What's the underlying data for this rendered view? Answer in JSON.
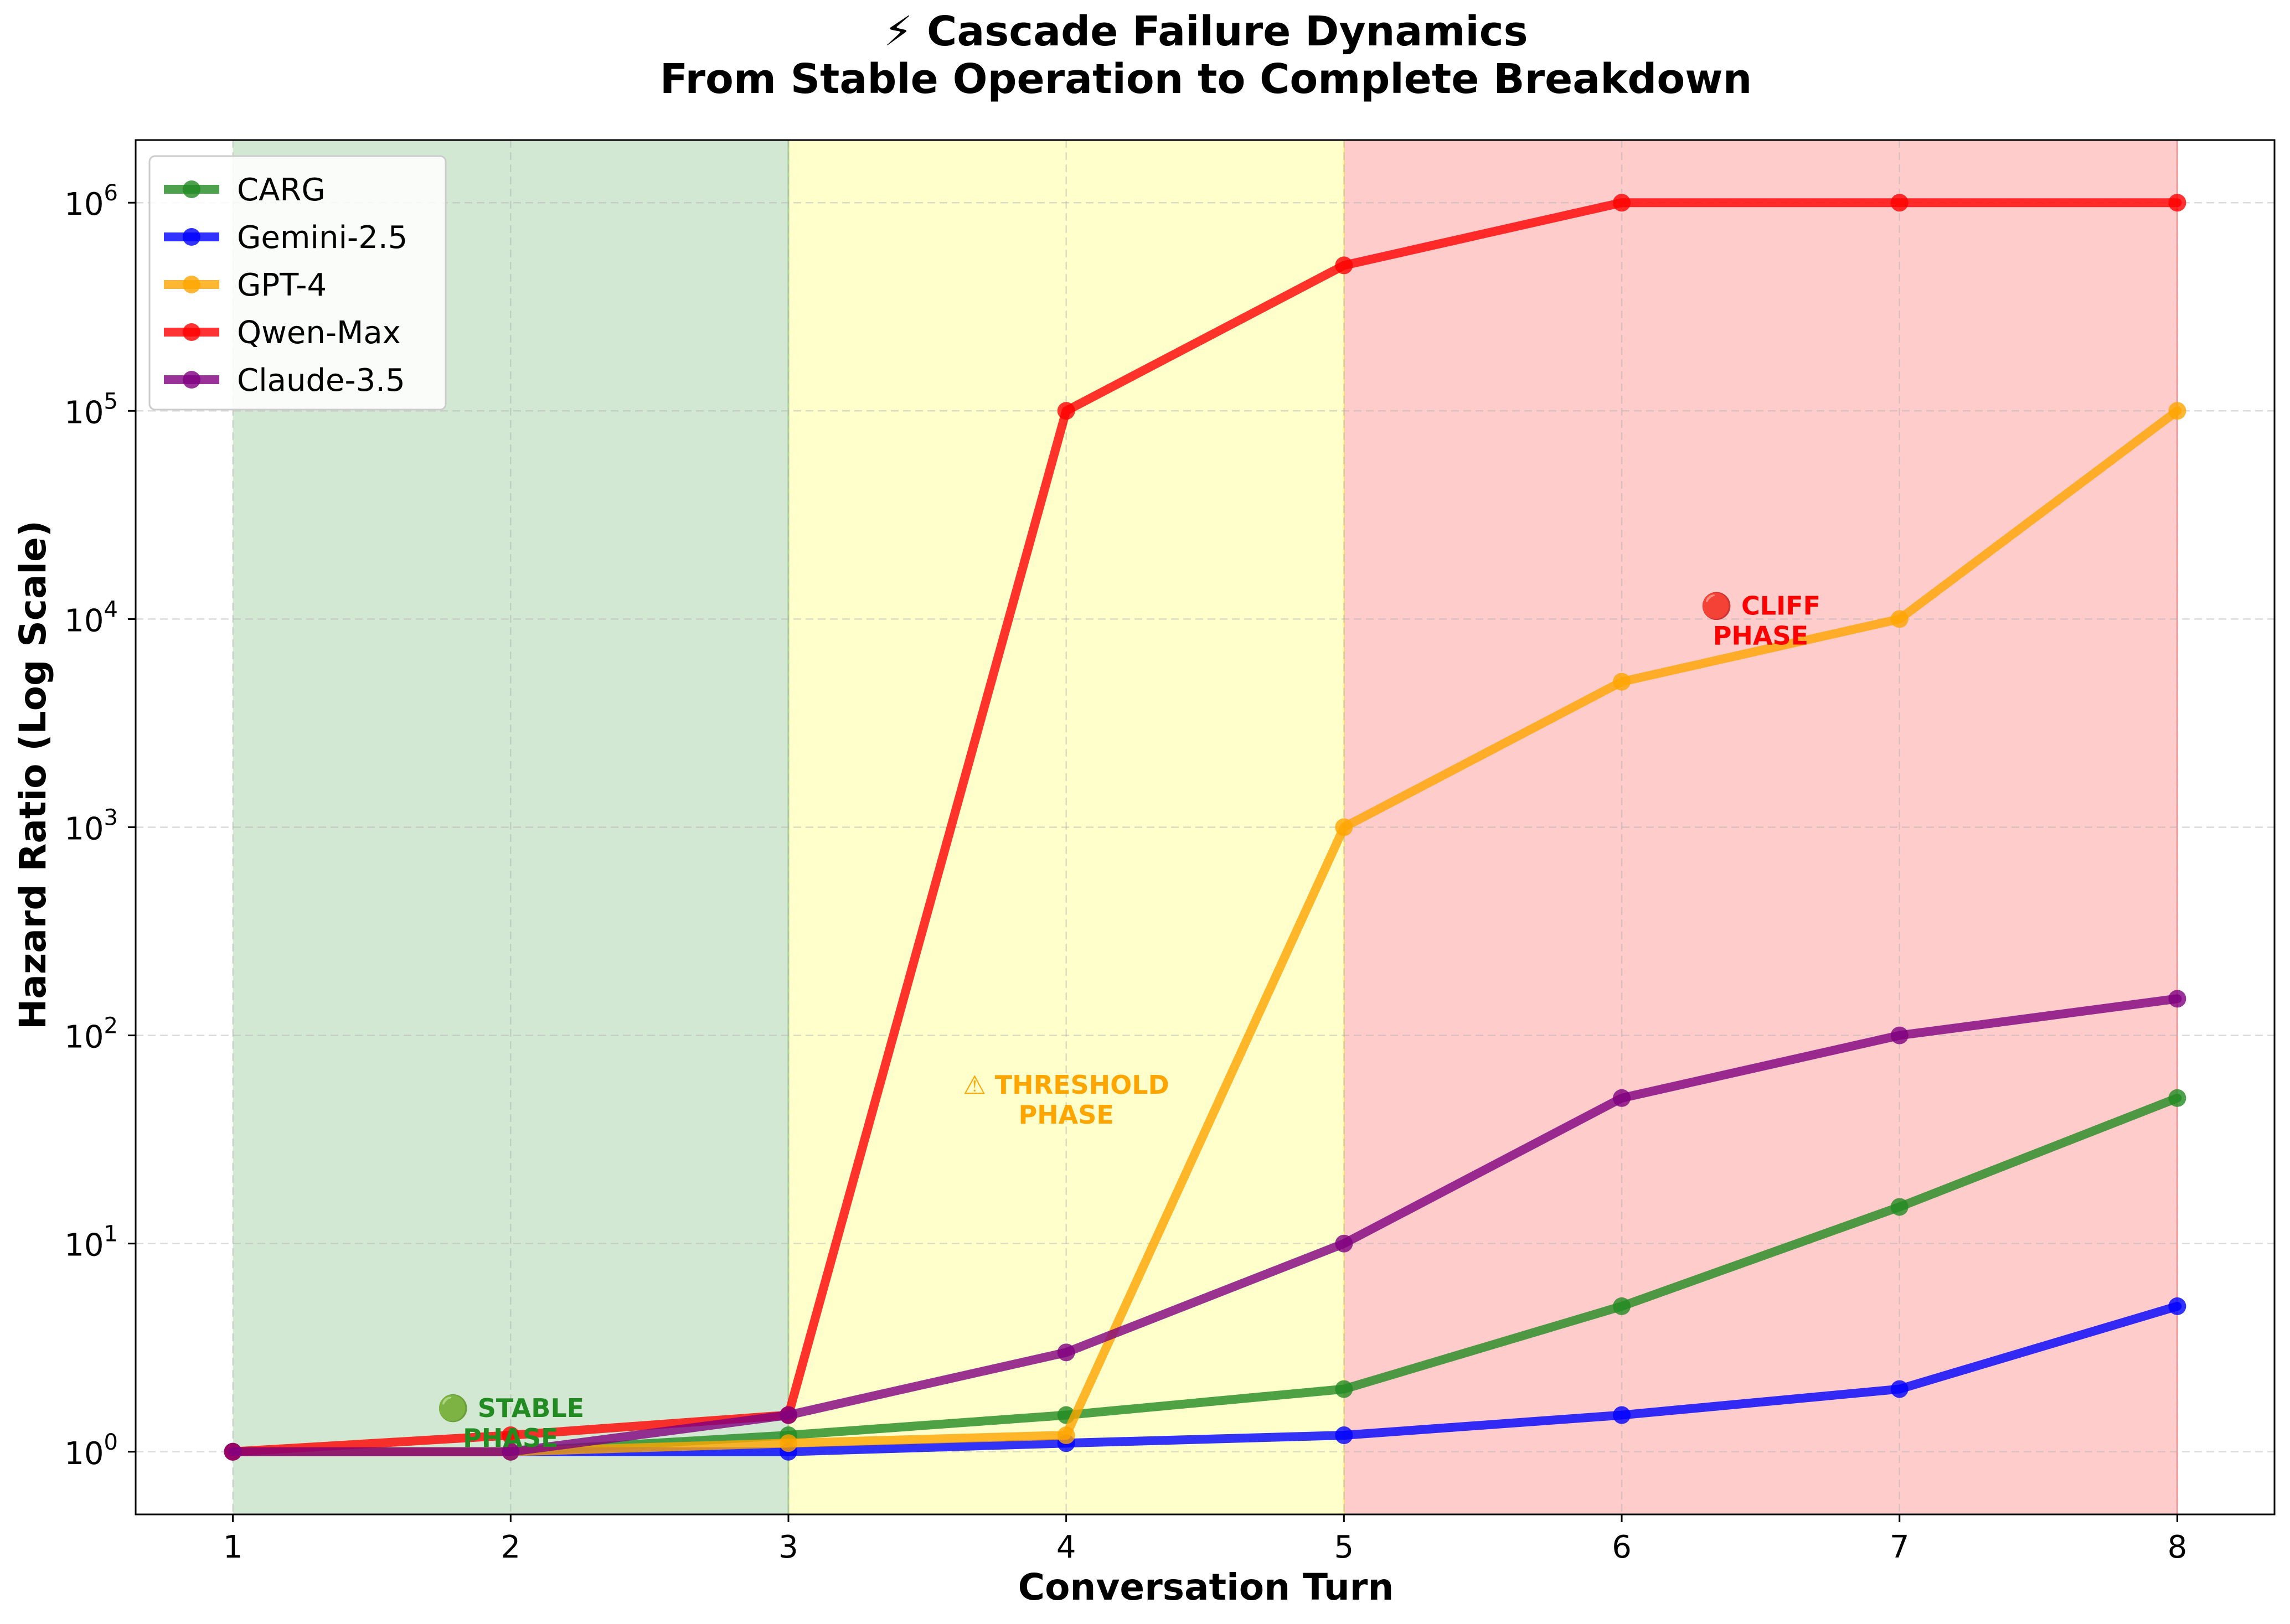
{
  "chart_data": {
    "type": "line",
    "title": "⚡ Cascade Failure Dynamics",
    "subtitle": "From Stable Operation to Complete Breakdown",
    "xlabel": "Conversation Turn",
    "ylabel": "Hazard Ratio (Log Scale)",
    "x": [
      1,
      2,
      3,
      4,
      5,
      6,
      7,
      8
    ],
    "x_ticks": [
      "1",
      "2",
      "3",
      "4",
      "5",
      "6",
      "7",
      "8"
    ],
    "xlim": [
      0.65,
      8.35
    ],
    "y_scale": "log",
    "ylim": [
      0.5,
      2000000
    ],
    "y_ticks": [
      {
        "base": "10",
        "exp": "0",
        "value": 1
      },
      {
        "base": "10",
        "exp": "1",
        "value": 10
      },
      {
        "base": "10",
        "exp": "2",
        "value": 100
      },
      {
        "base": "10",
        "exp": "3",
        "value": 1000
      },
      {
        "base": "10",
        "exp": "4",
        "value": 10000
      },
      {
        "base": "10",
        "exp": "5",
        "value": 100000
      },
      {
        "base": "10",
        "exp": "6",
        "value": 1000000
      }
    ],
    "grid": true,
    "legend_position": "top-left",
    "series": [
      {
        "name": "CARG",
        "color": "#228B22",
        "values": [
          1,
          1,
          1.2,
          1.5,
          2,
          5,
          15,
          50
        ]
      },
      {
        "name": "Gemini-2.5",
        "color": "#0000FF",
        "values": [
          1,
          1,
          1,
          1.1,
          1.2,
          1.5,
          2,
          5
        ]
      },
      {
        "name": "GPT-4",
        "color": "#FFA500",
        "values": [
          1,
          1,
          1.1,
          1.2,
          1000,
          5000,
          10000,
          100000
        ]
      },
      {
        "name": "Qwen-Max",
        "color": "#FF0000",
        "values": [
          1,
          1.2,
          1.5,
          100000,
          500000,
          1000000,
          1000000,
          1000000
        ]
      },
      {
        "name": "Claude-3.5",
        "color": "#800080",
        "values": [
          1,
          1,
          1.5,
          3,
          10,
          50,
          100,
          150
        ]
      }
    ],
    "phases": [
      {
        "x_start": 1,
        "x_end": 3,
        "color": "#228B22",
        "label_line1": "🟢 STABLE",
        "label_line2": "PHASE",
        "label_x": 2,
        "label_y": 1.4
      },
      {
        "x_start": 3,
        "x_end": 5,
        "color": "#FFFF00",
        "label_color": "#FFA500",
        "label_line1": "⚠ THRESHOLD",
        "label_line2": "PHASE",
        "label_x": 4,
        "label_y": 50
      },
      {
        "x_start": 5,
        "x_end": 8,
        "color": "#FF0000",
        "label_line1": "🔴 CLIFF",
        "label_line2": "PHASE",
        "label_x": 6.5,
        "label_y": 10000
      }
    ]
  }
}
